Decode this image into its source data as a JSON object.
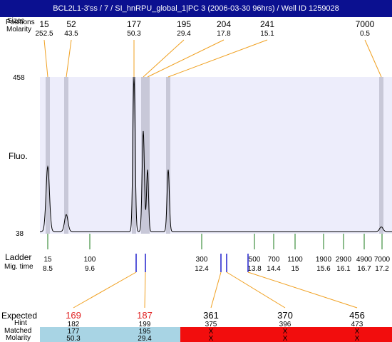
{
  "window": {
    "title": "BCL2L1-3'ss / 7 / SI_hnRPU_global_1|PC 3 (2006-03-30 96hrs) / Well ID 1259028"
  },
  "labels": {
    "sizes_overlap": "Sizes",
    "pos_overlap": "Positions",
    "molarity_top": "Molarity",
    "fluo": "Fluo.",
    "ladder": "Ladder",
    "mig_time": "Mig. time",
    "expected": "Expected",
    "hint": "Hint",
    "matched": "Matched",
    "molarity_bottom": "Molarity"
  },
  "colors": {
    "title_bg": "#0b1090",
    "plot_bg": "#ededfb",
    "peak_band": "#c8c8d8",
    "connector": "#f0a020",
    "ladder_tick": "#1a7a1a",
    "marker_tick": "#2020cc",
    "expected_red": "#e02020",
    "matched_bg": "#a8d4e4",
    "unmatched_bg": "#f20d0d"
  },
  "chart_data": {
    "type": "line",
    "ylim": [
      38,
      458
    ],
    "y_ticks": [
      "458",
      "38"
    ],
    "peaks": [
      {
        "size": "15",
        "molarity": "252.5"
      },
      {
        "size": "52",
        "molarity": "43.5"
      },
      {
        "size": "177",
        "molarity": "50.3"
      },
      {
        "size": "195",
        "molarity": "29.4"
      },
      {
        "size": "204",
        "molarity": "17.8"
      },
      {
        "size": "241",
        "molarity": "15.1"
      },
      {
        "size": "7000",
        "molarity": "0.5"
      }
    ],
    "ladder": [
      {
        "size": "15",
        "mig_time": "8.5"
      },
      {
        "size": "100",
        "mig_time": "9.6"
      },
      {
        "size": "300",
        "mig_time": "12.4"
      },
      {
        "size": "500",
        "mig_time": "13.8"
      },
      {
        "size": "700",
        "mig_time": "14.4"
      },
      {
        "size": "1100",
        "mig_time": "15"
      },
      {
        "size": "1900",
        "mig_time": "15.6"
      },
      {
        "size": "2900",
        "mig_time": "16.1"
      },
      {
        "size": "4900",
        "mig_time": "16.7"
      },
      {
        "size": "7000",
        "mig_time": "17.2"
      }
    ]
  },
  "expected_table": [
    {
      "expected": "169",
      "hint": "182",
      "matched": "177",
      "molarity": "50.3",
      "status": "matched"
    },
    {
      "expected": "187",
      "hint": "199",
      "matched": "195",
      "molarity": "29.4",
      "status": "matched"
    },
    {
      "expected": "361",
      "hint": "375",
      "matched": "X",
      "molarity": "X",
      "status": "unmatched"
    },
    {
      "expected": "370",
      "hint": "396",
      "matched": "X",
      "molarity": "X",
      "status": "unmatched"
    },
    {
      "expected": "456",
      "hint": "473",
      "matched": "X",
      "molarity": "X",
      "status": "unmatched"
    }
  ]
}
